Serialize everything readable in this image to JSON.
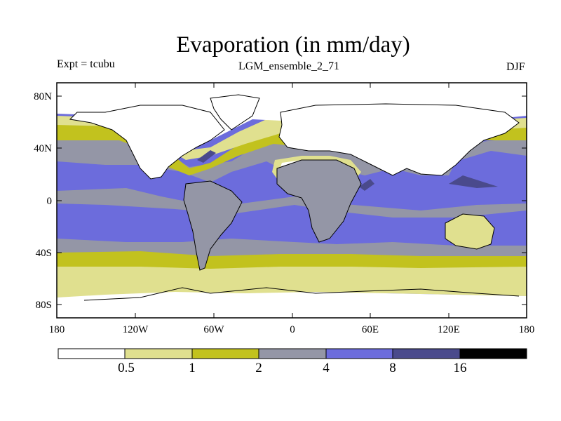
{
  "title": "Evaporation (in mm/day)",
  "expt": "Expt = tcubu",
  "ensemble": "LGM_ensemble_2_71",
  "season": "DJF",
  "y_ticks": [
    "80N",
    "40N",
    "0",
    "40S",
    "80S"
  ],
  "x_ticks": [
    "180",
    "120W",
    "60W",
    "0",
    "60E",
    "120E",
    "180"
  ],
  "colorbar": {
    "labels": [
      "0.5",
      "1",
      "2",
      "4",
      "8",
      "16"
    ],
    "colors": [
      "#ffffff",
      "#e0e08f",
      "#c2c21e",
      "#9496a6",
      "#6c6cdc",
      "#4a4a8c",
      "#000000"
    ]
  },
  "chart_data": {
    "type": "heatmap",
    "title": "Evaporation (in mm/day)",
    "variable": "Evaporation",
    "units": "mm/day",
    "experiment": "tcubu",
    "run": "LGM_ensemble_2_71",
    "season": "DJF",
    "lon_range": [
      -180,
      180
    ],
    "lat_range": [
      -90,
      90
    ],
    "contour_levels": [
      0.5,
      1,
      2,
      4,
      8,
      16
    ],
    "zonal_pattern": [
      {
        "lat_band": "80N-60N",
        "evaporation_class": "<0.5"
      },
      {
        "lat_band": "60N-45N",
        "evaporation_class": "0.5-2"
      },
      {
        "lat_band": "45N-35N",
        "evaporation_class": "2-4"
      },
      {
        "lat_band": "35N-10S",
        "evaporation_class": "4-8"
      },
      {
        "lat_band": "10S-35S",
        "evaporation_class": "4-8"
      },
      {
        "lat_band": "35S-45S",
        "evaporation_class": "2-4"
      },
      {
        "lat_band": "45S-55S",
        "evaporation_class": "1-2"
      },
      {
        "lat_band": "55S-65S",
        "evaporation_class": "0.5-1"
      },
      {
        "lat_band": "65S-90S",
        "evaporation_class": "<0.5"
      }
    ]
  }
}
